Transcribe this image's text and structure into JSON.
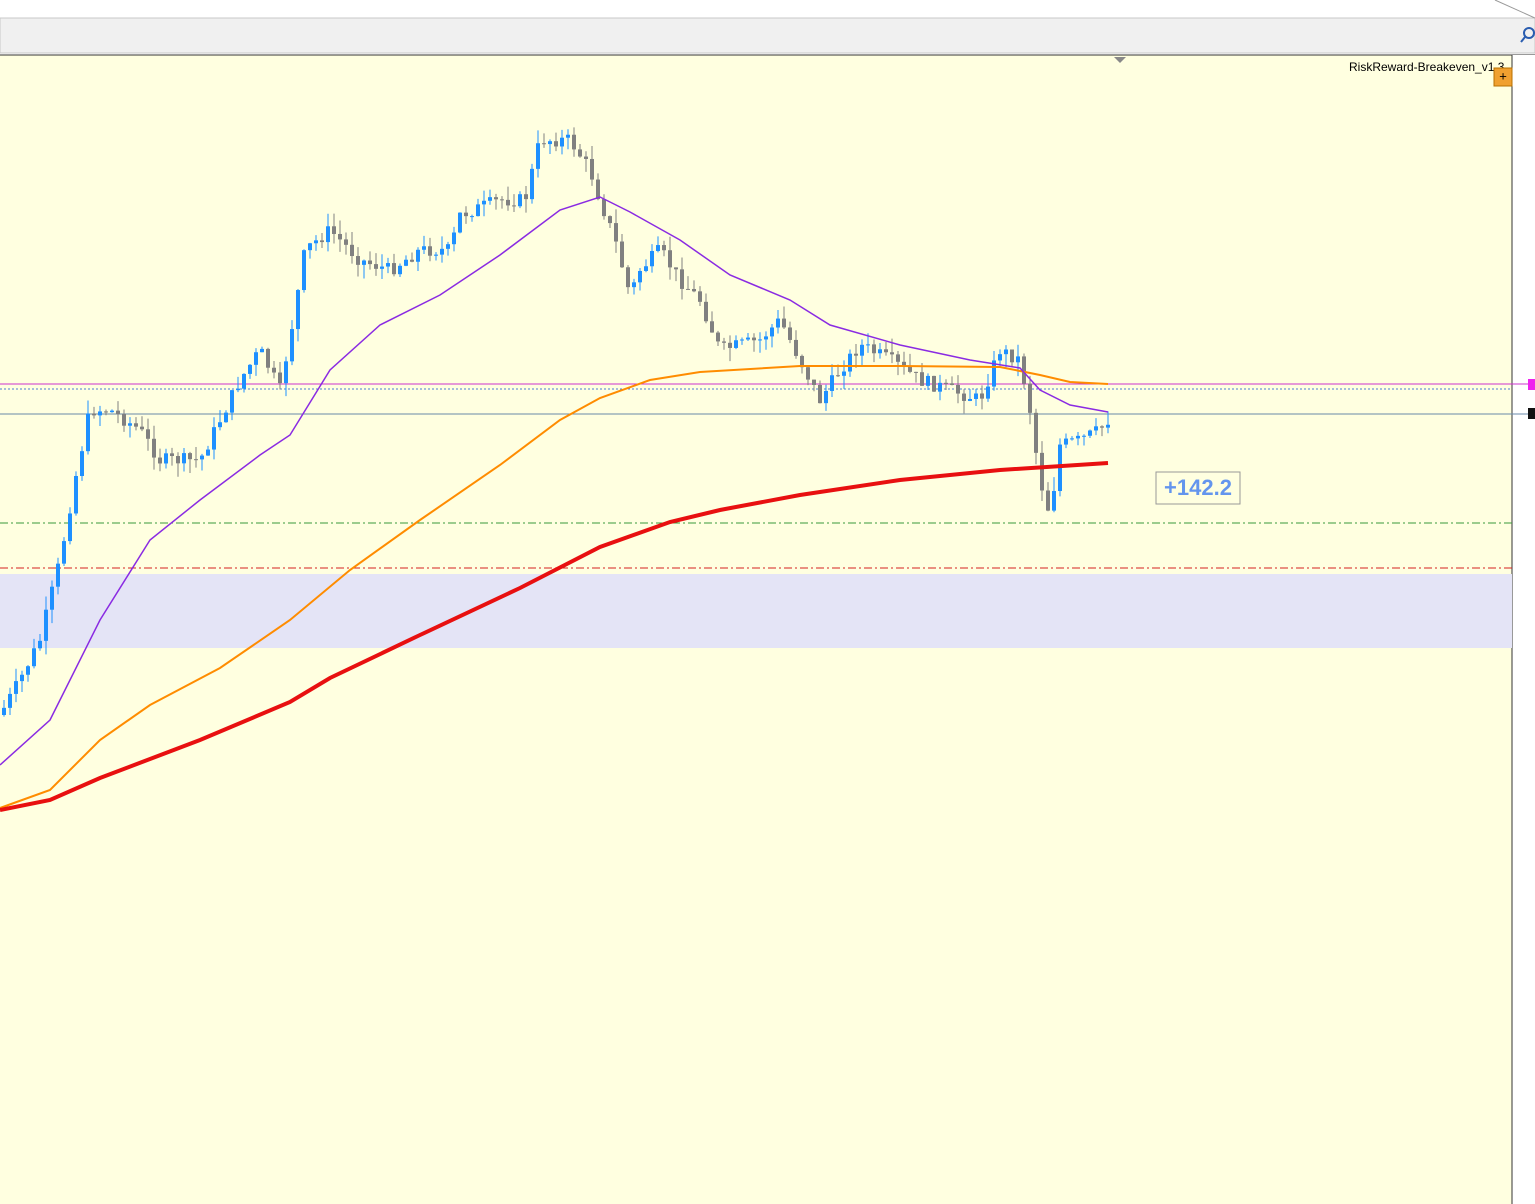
{
  "chart_window": {
    "indicator_label": "RiskReward-Breakeven_v1.3",
    "add_button": "+",
    "profit_label": "+142.2"
  }
}
